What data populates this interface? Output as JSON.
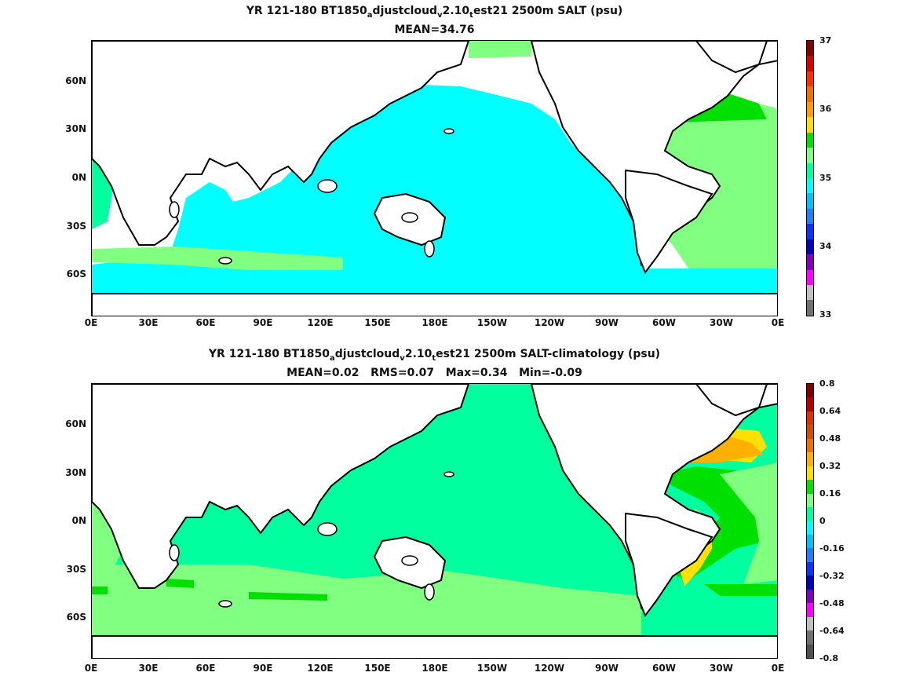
{
  "top": {
    "title_pre": "YR 121-180 BT1850",
    "t_a": "a",
    "title_mid1": "djustcloud",
    "t_v": "v",
    "title_mid2": "2.10",
    "t_t": "t",
    "title_post": "est21 2500m SALT (psu)",
    "subtitle": "MEAN=34.76",
    "colorbar_ticks": [
      "37",
      "36",
      "35",
      "34",
      "33"
    ],
    "colors": [
      "#800000",
      "#d90000",
      "#ff3000",
      "#f07000",
      "#ffa000",
      "#ffe000",
      "#00e000",
      "#80ff80",
      "#00ff9f",
      "#00ffff",
      "#00c0ff",
      "#2080ff",
      "#1030ff",
      "#0000c0",
      "#8000c0",
      "#ff00ff",
      "#c0c0c0",
      "#707070"
    ]
  },
  "bottom": {
    "title_pre": "YR 121-180 BT1850",
    "t_a": "a",
    "title_mid1": "djustcloud",
    "t_v": "v",
    "title_mid2": "2.10",
    "t_t": "t",
    "title_post": "est21 2500m SALT-climatology (psu)",
    "subtitle": "MEAN=0.02   RMS=0.07   Max=0.34   Min=-0.09",
    "colorbar_ticks": [
      "0.8",
      "0.64",
      "0.48",
      "0.32",
      "0.16",
      "0",
      "-0.16",
      "-0.32",
      "-0.48",
      "-0.64",
      "-0.8"
    ],
    "colors": [
      "#800000",
      "#b00000",
      "#e03000",
      "#d05000",
      "#f07000",
      "#ffb000",
      "#ffe000",
      "#00e000",
      "#80ff80",
      "#00ff9f",
      "#00ffff",
      "#00c0ff",
      "#2080ff",
      "#1030ff",
      "#0000c0",
      "#8000c0",
      "#ff00ff",
      "#c0c0c0",
      "#707070",
      "#505050"
    ]
  },
  "lat_labels": [
    "60N",
    "30N",
    "0N",
    "30S",
    "60S"
  ],
  "lon_labels": [
    "0E",
    "30E",
    "60E",
    "90E",
    "120E",
    "150E",
    "180E",
    "150W",
    "120W",
    "90W",
    "60W",
    "30W",
    "0E"
  ]
}
